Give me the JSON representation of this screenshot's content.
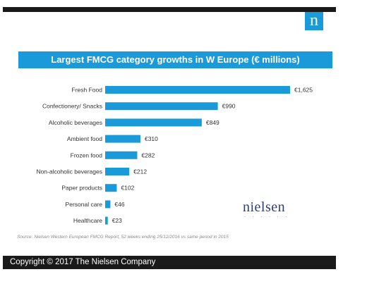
{
  "logo": {
    "letter": "n"
  },
  "brand": {
    "name": "nielsen"
  },
  "footer": {
    "source": "Source: Nielsen Western European FMCG Report, 52 weeks ending 25/12/2016 vs same period in 2015",
    "copyright": "Copyright © 2017 The Nielsen Company"
  },
  "colors": {
    "accent": "#1a9ad9",
    "bar": "#1a9ad9",
    "dark": "#1a1a1a"
  },
  "chart_data": {
    "type": "bar",
    "orientation": "horizontal",
    "title": "Largest FMCG category growths in W Europe (€ millions)",
    "categories": [
      "Fresh Food",
      "Confectionery/ Snacks",
      "Alcoholic beverages",
      "Ambient food",
      "Frozen food",
      "Non-alcoholic beverages",
      "Paper products",
      "Personal care",
      "Healthcare"
    ],
    "values": [
      1625,
      990,
      849,
      310,
      282,
      212,
      102,
      46,
      23
    ],
    "labels": [
      "€1,625",
      "€990",
      "€849",
      "€310",
      "€282",
      "€212",
      "€102",
      "€46",
      "€23"
    ],
    "xlim": [
      0,
      1625
    ],
    "grid": false
  }
}
